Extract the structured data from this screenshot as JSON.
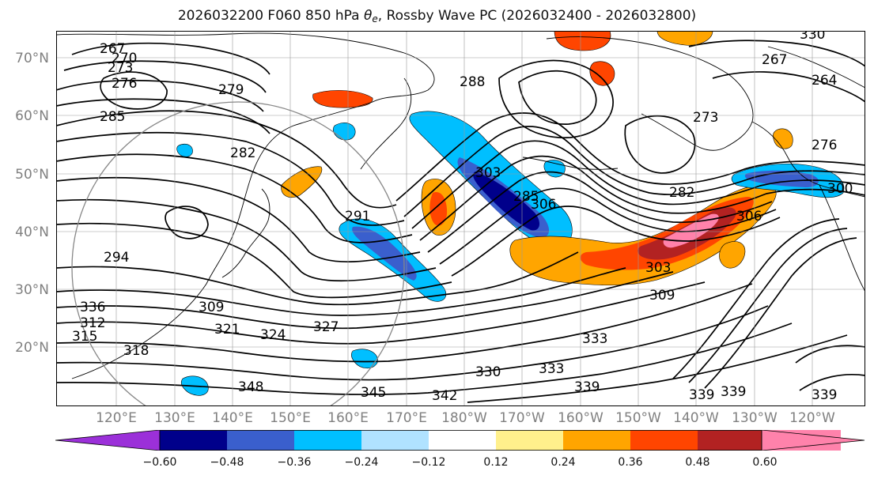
{
  "title": {
    "prefix": "2026032200 F060 850 hPa ",
    "theta": "θ",
    "theta_sub": "e",
    "suffix": ", Rossby Wave PC (2026032400 - 2026032800)"
  },
  "axes": {
    "lat_labels": [
      "70°N",
      "60°N",
      "50°N",
      "40°N",
      "30°N",
      "20°N"
    ],
    "lon_labels": [
      "120°E",
      "130°E",
      "140°E",
      "150°E",
      "160°E",
      "170°E",
      "180°W",
      "170°W",
      "160°W",
      "150°W",
      "140°W",
      "130°W",
      "120°W"
    ]
  },
  "contour_labels": [
    "267",
    "270",
    "273",
    "276",
    "279",
    "285",
    "282",
    "288",
    "291",
    "294",
    "303",
    "306",
    "309",
    "312",
    "315",
    "318",
    "321",
    "324",
    "327",
    "330",
    "333",
    "336",
    "339",
    "342",
    "345",
    "348",
    "264",
    "267",
    "276",
    "273",
    "282",
    "285",
    "300",
    "303",
    "306",
    "309",
    "330",
    "333",
    "339",
    "339",
    "339"
  ],
  "colorbar": {
    "colors": [
      "#9b30d9",
      "#00008b",
      "#3a5fcd",
      "#00bfff",
      "#b0e2ff",
      "#ffffff",
      "#fff08c",
      "#ffa500",
      "#ff4500",
      "#b22222",
      "#ff82ab",
      "#ff82ab"
    ],
    "tick_labels": [
      "−0.60",
      "−0.48",
      "−0.36",
      "−0.24",
      "−0.12",
      "0.12",
      "0.24",
      "0.36",
      "0.48",
      "0.60"
    ]
  },
  "map_colors": {
    "land": "#000000",
    "grid": "#9a9a9a",
    "contour": "#000000"
  }
}
